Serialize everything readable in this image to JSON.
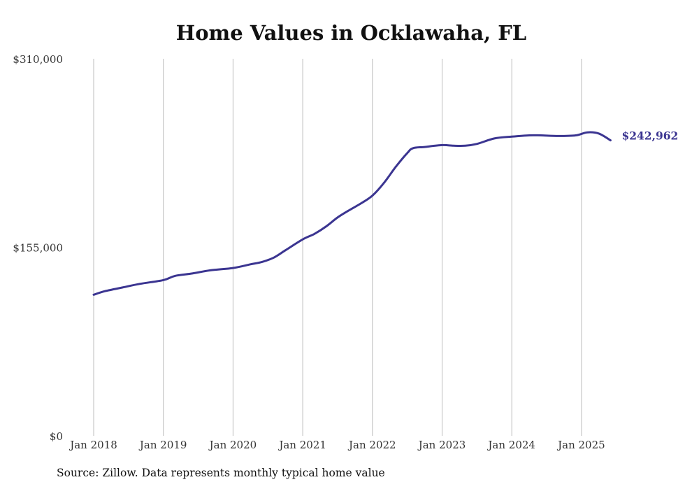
{
  "chart_data": {
    "type": "line",
    "title": "Home Values in Ocklawaha, FL",
    "xlabel": "",
    "ylabel": "",
    "ylim": [
      0,
      310000
    ],
    "y_ticks": [
      {
        "value": 0,
        "label": "$0"
      },
      {
        "value": 155000,
        "label": "$155,000"
      },
      {
        "value": 310000,
        "label": "$310,000"
      }
    ],
    "x_ticks": [
      {
        "value": "2018-01",
        "label": "Jan 2018"
      },
      {
        "value": "2019-01",
        "label": "Jan 2019"
      },
      {
        "value": "2020-01",
        "label": "Jan 2020"
      },
      {
        "value": "2021-01",
        "label": "Jan 2021"
      },
      {
        "value": "2022-01",
        "label": "Jan 2022"
      },
      {
        "value": "2023-01",
        "label": "Jan 2023"
      },
      {
        "value": "2024-01",
        "label": "Jan 2024"
      },
      {
        "value": "2025-01",
        "label": "Jan 2025"
      }
    ],
    "grid": "vertical",
    "line_color": "#3b3591",
    "series": [
      {
        "x": [
          "2018-01",
          "2018-03",
          "2018-06",
          "2018-09",
          "2019-01",
          "2019-03",
          "2019-06",
          "2019-09",
          "2020-01",
          "2020-04",
          "2020-06",
          "2020-08",
          "2020-10",
          "2021-01",
          "2021-03",
          "2021-05",
          "2021-07",
          "2021-09",
          "2021-11",
          "2022-01",
          "2022-03",
          "2022-05",
          "2022-07",
          "2022-08",
          "2022-10",
          "2023-01",
          "2023-03",
          "2023-05",
          "2023-07",
          "2023-10",
          "2024-01",
          "2024-04",
          "2024-06",
          "2024-09",
          "2024-12",
          "2025-02",
          "2025-04",
          "2025-06"
        ],
        "y": [
          116000,
          119000,
          122000,
          125000,
          128000,
          131500,
          133500,
          136000,
          138000,
          141000,
          143000,
          146500,
          152500,
          161500,
          166000,
          172000,
          179500,
          185500,
          191000,
          197500,
          208000,
          221000,
          232500,
          236500,
          237500,
          239000,
          238500,
          238500,
          240000,
          244500,
          246000,
          247000,
          247000,
          246500,
          247000,
          249500,
          248500,
          242962
        ]
      }
    ],
    "end_label": "$242,962",
    "source_note": "Source: Zillow. Data represents monthly typical home value"
  }
}
